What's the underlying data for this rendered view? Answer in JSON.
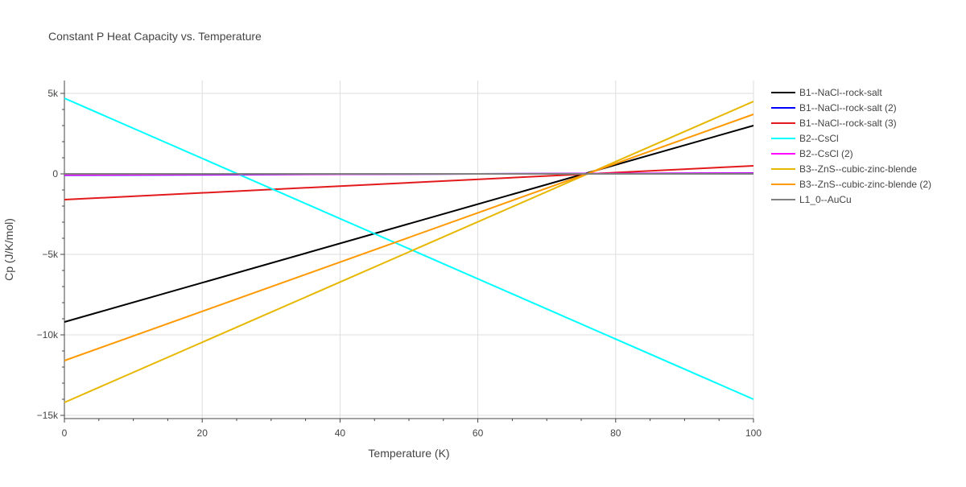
{
  "chart_data": {
    "type": "line",
    "title": "Constant P Heat Capacity vs. Temperature",
    "xlabel": "Temperature (K)",
    "ylabel": "Cp (J/K/mol)",
    "xlim": [
      0,
      100
    ],
    "ylim": [
      -15200,
      5800
    ],
    "xticks": [
      0,
      20,
      40,
      60,
      80,
      100
    ],
    "xtick_labels": [
      "0",
      "20",
      "40",
      "60",
      "80",
      "100"
    ],
    "yticks": [
      5000,
      0,
      -5000,
      -10000,
      -15000
    ],
    "ytick_labels": [
      "5k",
      "0",
      "−5k",
      "−10k",
      "−15k"
    ],
    "grid": true,
    "legend_position": "right",
    "series": [
      {
        "name": "B1--NaCl--rock-salt",
        "color": "#000000",
        "x": [
          0,
          100
        ],
        "values": [
          -9200,
          3000
        ]
      },
      {
        "name": "B1--NaCl--rock-salt (2)",
        "color": "#0000ff",
        "x": [
          0,
          100
        ],
        "values": [
          -80,
          50
        ]
      },
      {
        "name": "B1--NaCl--rock-salt (3)",
        "color": "#e31a1c",
        "x": [
          0,
          100
        ],
        "values": [
          -1600,
          500
        ]
      },
      {
        "name": "B2--CsCl",
        "color": "#00ffff",
        "x": [
          0,
          100
        ],
        "values": [
          4700,
          -14000
        ]
      },
      {
        "name": "B2--CsCl (2)",
        "color": "#ff00ff",
        "x": [
          0,
          100
        ],
        "values": [
          -60,
          40
        ]
      },
      {
        "name": "B3--ZnS--cubic-zinc-blende",
        "color": "#e6b800",
        "x": [
          0,
          100
        ],
        "values": [
          -14200,
          4500
        ]
      },
      {
        "name": "B3--ZnS--cubic-zinc-blende (2)",
        "color": "#ff9900",
        "x": [
          0,
          100
        ],
        "values": [
          -11600,
          3700
        ]
      },
      {
        "name": "L1_0--AuCu",
        "color": "#808080",
        "x": [
          0,
          100
        ],
        "values": [
          0,
          0
        ]
      }
    ]
  }
}
